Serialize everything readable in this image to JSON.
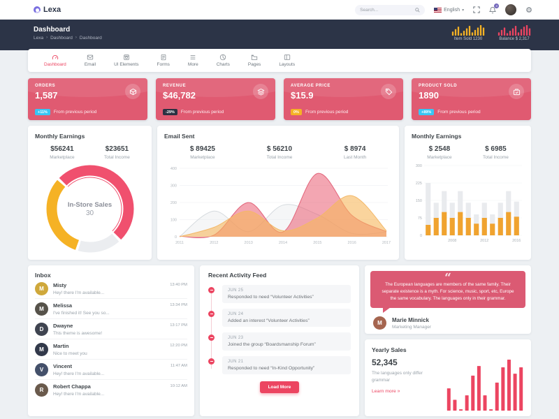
{
  "topbar": {
    "logo": "Lexa",
    "search": {
      "placeholder": "Search..."
    },
    "language": {
      "label": "English"
    },
    "notification_count": "3"
  },
  "header": {
    "title": "Dashboard",
    "breadcrumb": [
      "Lexa",
      "Dashboard",
      "Dashboard"
    ],
    "widgets": [
      {
        "label": "Item Sold 1230",
        "chart_data": {
          "type": "bar",
          "values": [
            5,
            8,
            11,
            3,
            6,
            9,
            12,
            4,
            7,
            10,
            13,
            10
          ],
          "color": "#f5b225"
        }
      },
      {
        "label": "Balance $ 2,317",
        "chart_data": {
          "type": "bar",
          "values": [
            4,
            7,
            10,
            3,
            6,
            9,
            12,
            4,
            8,
            11,
            13,
            9
          ],
          "color": "#ec4561"
        }
      }
    ]
  },
  "menu": {
    "items": [
      {
        "label": "Dashboard",
        "active": true
      },
      {
        "label": "Email",
        "active": false
      },
      {
        "label": "UI Elements",
        "active": false
      },
      {
        "label": "Forms",
        "active": false
      },
      {
        "label": "More",
        "active": false
      },
      {
        "label": "Charts",
        "active": false
      },
      {
        "label": "Pages",
        "active": false
      },
      {
        "label": "Layouts",
        "active": false
      }
    ]
  },
  "stat_cards": [
    {
      "label": "ORDERS",
      "value": "1,587",
      "badge": "+11%",
      "badge_color": "#38c6f4",
      "note": "From previous period"
    },
    {
      "label": "REVENUE",
      "value": "$46,782",
      "badge": "-29%",
      "badge_color": "#2a3142",
      "note": "From previous period"
    },
    {
      "label": "AVERAGE PRICE",
      "value": "$15.9",
      "badge": "0%",
      "badge_color": "#f5b225",
      "note": "From previous period"
    },
    {
      "label": "PRODUCT SOLD",
      "value": "1890",
      "badge": "+89%",
      "badge_color": "#38c6f4",
      "note": "From previous period"
    }
  ],
  "monthly_earnings_left": {
    "title": "Monthly Earnings",
    "stat1": {
      "value": "$56241",
      "label": "Marketplace"
    },
    "stat2": {
      "value": "$23651",
      "label": "Total Income"
    },
    "chart_data": {
      "type": "pie",
      "donut": true,
      "center_label": "In-Store Sales",
      "center_value": "30",
      "start_angle_cw": 225,
      "segments": [
        {
          "name": "in-store-sales",
          "value": 51,
          "color": "#f0506e"
        },
        {
          "name": "segment-light",
          "value": 17,
          "color": "#ebedf0"
        },
        {
          "name": "segment-yellow",
          "value": 32,
          "color": "#f5b225"
        }
      ]
    }
  },
  "email_sent": {
    "title": "Email Sent",
    "stat1": {
      "value": "$ 89425",
      "label": "Marketplace"
    },
    "stat2": {
      "value": "$ 56210",
      "label": "Total Income"
    },
    "stat3": {
      "value": "$ 8974",
      "label": "Last Month"
    },
    "chart_data": {
      "type": "area",
      "x": [
        "2011",
        "2012",
        "2013",
        "2014",
        "2015",
        "2016",
        "2017"
      ],
      "ylim": [
        0,
        400
      ],
      "yticks": [
        0,
        100,
        200,
        300,
        400
      ],
      "series": [
        {
          "name": "series-gray",
          "values": [
            0,
            150,
            30,
            185,
            130,
            20,
            28
          ],
          "stroke": "#d5dade",
          "fill": "rgba(228,231,235,0.38)"
        },
        {
          "name": "series-pink",
          "values": [
            3,
            10,
            200,
            28,
            370,
            125,
            30
          ],
          "stroke": "#e2647a",
          "fill": "rgba(233,92,114,0.55)"
        },
        {
          "name": "series-orange",
          "values": [
            0,
            55,
            150,
            35,
            110,
            240,
            35
          ],
          "stroke": "#f3b868",
          "fill": "rgba(246,184,92,0.6)"
        }
      ]
    }
  },
  "monthly_earnings_right": {
    "title": "Monthly Earnings",
    "stat1": {
      "value": "$ 2548",
      "label": "Marketplace"
    },
    "stat2": {
      "value": "$ 6985",
      "label": "Total Income"
    },
    "chart_data": {
      "type": "bar",
      "stacked": true,
      "ylim": [
        0,
        300
      ],
      "yticks": [
        0,
        75,
        150,
        225,
        300
      ],
      "totals": [
        225,
        140,
        190,
        140,
        190,
        140,
        90,
        140,
        90,
        140,
        190,
        145
      ],
      "values": [
        45,
        75,
        100,
        75,
        100,
        75,
        50,
        75,
        50,
        75,
        100,
        80
      ],
      "total_color": "#e9ebee",
      "value_color": "#f0a32f",
      "xlabels": [
        {
          "index": 3,
          "label": "2008"
        },
        {
          "index": 7,
          "label": "2012"
        },
        {
          "index": 11,
          "label": "2016"
        }
      ]
    }
  },
  "inbox": {
    "title": "Inbox",
    "messages": [
      {
        "name": "Misty",
        "text": "Hey! there I'm available...",
        "time": "13:40 PM",
        "initial": "M",
        "avatar_color": "#cfa83b"
      },
      {
        "name": "Melissa",
        "text": "I've finished it! See you so...",
        "time": "13:34 PM",
        "initial": "M",
        "avatar_color": "#56524a"
      },
      {
        "name": "Dwayne",
        "text": "This theme is awesome!",
        "time": "13:17 PM",
        "initial": "D",
        "avatar_color": "#3f4450"
      },
      {
        "name": "Martin",
        "text": "Nice to meet you",
        "time": "12:20 PM",
        "initial": "M",
        "avatar_color": "#32394a"
      },
      {
        "name": "Vincent",
        "text": "Hey! there I'm available...",
        "time": "11:47 AM",
        "initial": "V",
        "avatar_color": "#44506a"
      },
      {
        "name": "Robert Chappa",
        "text": "Hey! there I'm available...",
        "time": "10:12 AM",
        "initial": "R",
        "avatar_color": "#6a5a4c"
      }
    ]
  },
  "activity": {
    "title": "Recent Activity Feed",
    "items": [
      {
        "date": "JUN 25",
        "text": "Responded to need “Volunteer Activities”"
      },
      {
        "date": "JUN 24",
        "text": "Added an interest “Volunteer Activities”"
      },
      {
        "date": "JUN 23",
        "text": "Joined the group “Boardsmanship Forum”"
      },
      {
        "date": "JUN 21",
        "text": "Responded to need “In-Kind Opportunity”"
      }
    ],
    "load_more_label": "Load More"
  },
  "quote": {
    "text": "The European languages are members of the same family. Their separate existence is a myth. For science, music, sport, etc, Europe the same vocabulary. The languages only in their grammar.",
    "author": "Marie Minnick",
    "role": "Marketing Manager",
    "initial": "M",
    "avatar_color": "#a5654f"
  },
  "yearly_sales": {
    "title": "Yearly Sales",
    "value": "52,345",
    "subtitle": "The languages only differ grammar",
    "link_label": "Learn more",
    "link_arrow": "»",
    "chart_data": {
      "type": "bar",
      "values": [
        35,
        17,
        2,
        24,
        55,
        70,
        24,
        2,
        44,
        68,
        80,
        58,
        68
      ],
      "color": "#ec4561"
    }
  }
}
